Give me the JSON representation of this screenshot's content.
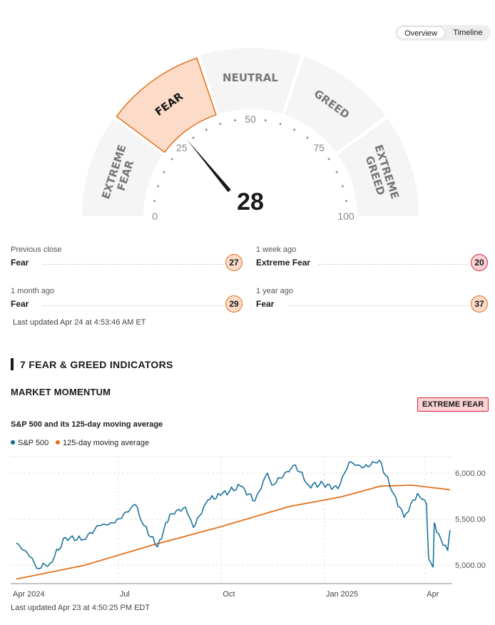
{
  "tabs": {
    "overview": "Overview",
    "timeline": "Timeline",
    "active": "overview"
  },
  "gauge": {
    "value": 28,
    "value_label": "28",
    "segments": [
      {
        "label1": "EXTREME",
        "label2": "FEAR"
      },
      {
        "label1": "FEAR",
        "label2": ""
      },
      {
        "label1": "NEUTRAL",
        "label2": ""
      },
      {
        "label1": "GREED",
        "label2": ""
      },
      {
        "label1": "EXTREME",
        "label2": "GREED"
      }
    ],
    "active_segment": 1,
    "ticks": [
      "0",
      "25",
      "50",
      "75",
      "100"
    ],
    "colors": {
      "segment": "#f5f5f5",
      "active_fill": "#fcdcc9",
      "active_stroke": "#e2711d",
      "label": "#777777",
      "needle": "#1a1a1a"
    }
  },
  "history": [
    {
      "label": "Previous close",
      "rating": "Fear",
      "score": "27",
      "extreme": false
    },
    {
      "label": "1 week ago",
      "rating": "Extreme Fear",
      "score": "20",
      "extreme": true
    },
    {
      "label": "1 month ago",
      "rating": "Fear",
      "score": "29",
      "extreme": false
    },
    {
      "label": "1 year ago",
      "rating": "Fear",
      "score": "37",
      "extreme": false
    }
  ],
  "last_updated_index": "Last updated Apr 24 at 4:53:46 AM ET",
  "indicators_heading": "7 FEAR & GREED INDICATORS",
  "market_momentum": {
    "heading": "MARKET MOMENTUM",
    "rating_badge": "EXTREME FEAR",
    "chart_title": "S&P 500 and its 125-day moving average",
    "legend": [
      {
        "name": "S&P 500",
        "color": "#0d6c96"
      },
      {
        "name": "125-day moving average",
        "color": "#e2711d"
      }
    ],
    "last_updated": "Last updated Apr 23 at 4:50:25 PM EDT"
  },
  "chart_data": {
    "type": "line",
    "title": "S&P 500 and its 125-day moving average",
    "x_ticks": [
      "Apr 2024",
      "Jul",
      "Oct",
      "Jan 2025",
      "Apr"
    ],
    "y_ticks": [
      "6,000.00",
      "5,500.00",
      "5,000.00"
    ],
    "ylim": [
      4800,
      6180
    ],
    "grid": true,
    "series": [
      {
        "name": "S&P 500",
        "color": "#0d6c96",
        "x": [
          "2024-04-01",
          "2024-04-15",
          "2024-04-19",
          "2024-05-01",
          "2024-05-15",
          "2024-05-31",
          "2024-06-14",
          "2024-06-28",
          "2024-07-16",
          "2024-07-24",
          "2024-08-05",
          "2024-08-16",
          "2024-08-30",
          "2024-09-06",
          "2024-09-19",
          "2024-09-30",
          "2024-10-18",
          "2024-10-31",
          "2024-11-11",
          "2024-11-15",
          "2024-12-06",
          "2024-12-18",
          "2024-12-31",
          "2025-01-13",
          "2025-01-23",
          "2025-02-05",
          "2025-02-19",
          "2025-03-04",
          "2025-03-13",
          "2025-03-25",
          "2025-04-02",
          "2025-04-04",
          "2025-04-08",
          "2025-04-09",
          "2025-04-11",
          "2025-04-21",
          "2025-04-23"
        ],
        "values": [
          5240,
          5080,
          4970,
          5020,
          5300,
          5280,
          5430,
          5460,
          5660,
          5430,
          5200,
          5550,
          5630,
          5410,
          5710,
          5760,
          5860,
          5700,
          6000,
          5870,
          6090,
          5870,
          5880,
          5830,
          6120,
          6060,
          6140,
          5770,
          5520,
          5780,
          5670,
          5070,
          4980,
          5460,
          5360,
          5160,
          5380
        ]
      },
      {
        "name": "125-day moving average",
        "color": "#e2711d",
        "x": [
          "2024-04-01",
          "2024-06-01",
          "2024-08-01",
          "2024-10-01",
          "2024-12-01",
          "2025-01-15",
          "2025-02-20",
          "2025-03-20",
          "2025-04-23"
        ],
        "values": [
          4850,
          5000,
          5220,
          5420,
          5640,
          5740,
          5860,
          5870,
          5820
        ]
      }
    ]
  }
}
